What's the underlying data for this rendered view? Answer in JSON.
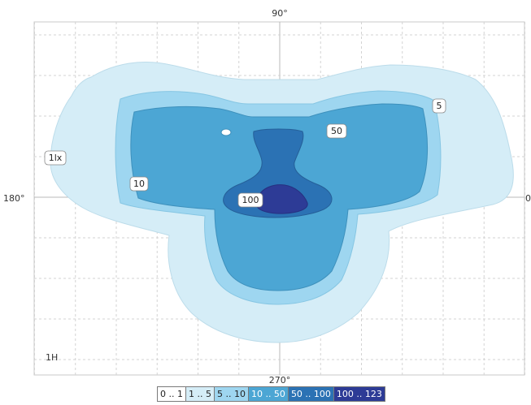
{
  "chart_data": {
    "type": "heatmap",
    "title": "",
    "angle_labels": {
      "top": "90°",
      "bottom": "270°",
      "left": "180°",
      "right": "0"
    },
    "corner_label": "1H",
    "grid": true,
    "levels": [
      {
        "label": "0 .. 1",
        "range": [
          0,
          1
        ],
        "color": "#ffffff"
      },
      {
        "label": "1 .. 5",
        "range": [
          1,
          5
        ],
        "color": "#d5edf7"
      },
      {
        "label": "5 .. 10",
        "range": [
          5,
          10
        ],
        "color": "#9ed6f0"
      },
      {
        "label": "10 .. 50",
        "range": [
          10,
          50
        ],
        "color": "#4ca6d4"
      },
      {
        "label": "50 .. 100",
        "range": [
          50,
          100
        ],
        "color": "#2b72b4"
      },
      {
        "label": "100 .. 123",
        "range": [
          100,
          123
        ],
        "color": "#2d3b96"
      }
    ],
    "contour_labels": [
      {
        "text": "1lx",
        "value": 1
      },
      {
        "text": "5",
        "value": 5
      },
      {
        "text": "10",
        "value": 10
      },
      {
        "text": "50",
        "value": 50
      },
      {
        "text": "100",
        "value": 100
      }
    ],
    "legend_position": "bottom-center"
  }
}
